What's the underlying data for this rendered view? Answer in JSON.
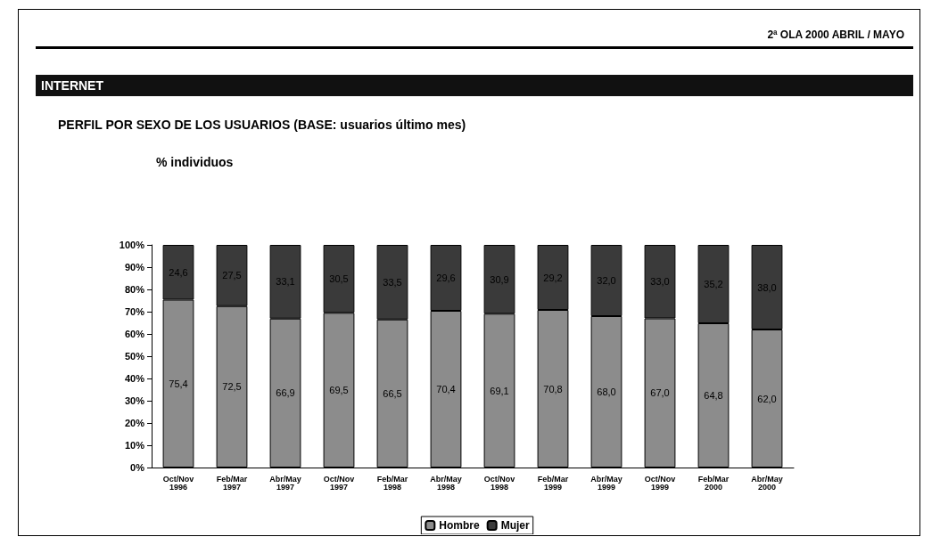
{
  "chart_data": {
    "type": "bar",
    "stacked": true,
    "title": "PERFIL POR SEXO DE LOS USUARIOS (BASE: usuarios último mes)",
    "annotations": [
      "2ª OLA 2000 ABRIL / MAYO",
      "INTERNET",
      "% individuos"
    ],
    "categories": [
      "Oct/Nov 1996",
      "Feb/Mar 1997",
      "Abr/May 1997",
      "Oct/Nov 1997",
      "Feb/Mar 1998",
      "Abr/May 1998",
      "Oct/Nov 1998",
      "Feb/Mar 1999",
      "Abr/May 1999",
      "Oct/Nov 1999",
      "Feb/Mar 2000",
      "Abr/May 2000"
    ],
    "series": [
      {
        "name": "Hombre",
        "color": "#8c8c8c",
        "values": [
          75.4,
          72.5,
          66.9,
          69.5,
          66.5,
          70.4,
          69.1,
          70.8,
          68.0,
          67.0,
          64.8,
          62.0
        ],
        "value_labels": [
          "75,4",
          "72,5",
          "66,9",
          "69,5",
          "66,5",
          "70,4",
          "69,1",
          "70,8",
          "68,0",
          "67,0",
          "64,8",
          "62,0"
        ]
      },
      {
        "name": "Mujer",
        "color": "#3a3a3a",
        "values": [
          24.6,
          27.5,
          33.1,
          30.5,
          33.5,
          29.6,
          30.9,
          29.2,
          32.0,
          33.0,
          35.2,
          38.0
        ],
        "value_labels": [
          "24,6",
          "27,5",
          "33,1",
          "30,5",
          "33,5",
          "29,6",
          "30,9",
          "29,2",
          "32,0",
          "33,0",
          "35,2",
          "38,0"
        ]
      }
    ],
    "ylim": [
      0,
      100
    ],
    "yticks": [
      {
        "value": 0,
        "label": "0%"
      },
      {
        "value": 10,
        "label": "10%"
      },
      {
        "value": 20,
        "label": "20%"
      },
      {
        "value": 30,
        "label": "30%"
      },
      {
        "value": 40,
        "label": "40%"
      },
      {
        "value": 50,
        "label": "50%"
      },
      {
        "value": 60,
        "label": "60%"
      },
      {
        "value": 70,
        "label": "70%"
      },
      {
        "value": 80,
        "label": "80%"
      },
      {
        "value": 90,
        "label": "90%"
      },
      {
        "value": 100,
        "label": "100%"
      }
    ],
    "grid": false,
    "legend": "bottom"
  }
}
